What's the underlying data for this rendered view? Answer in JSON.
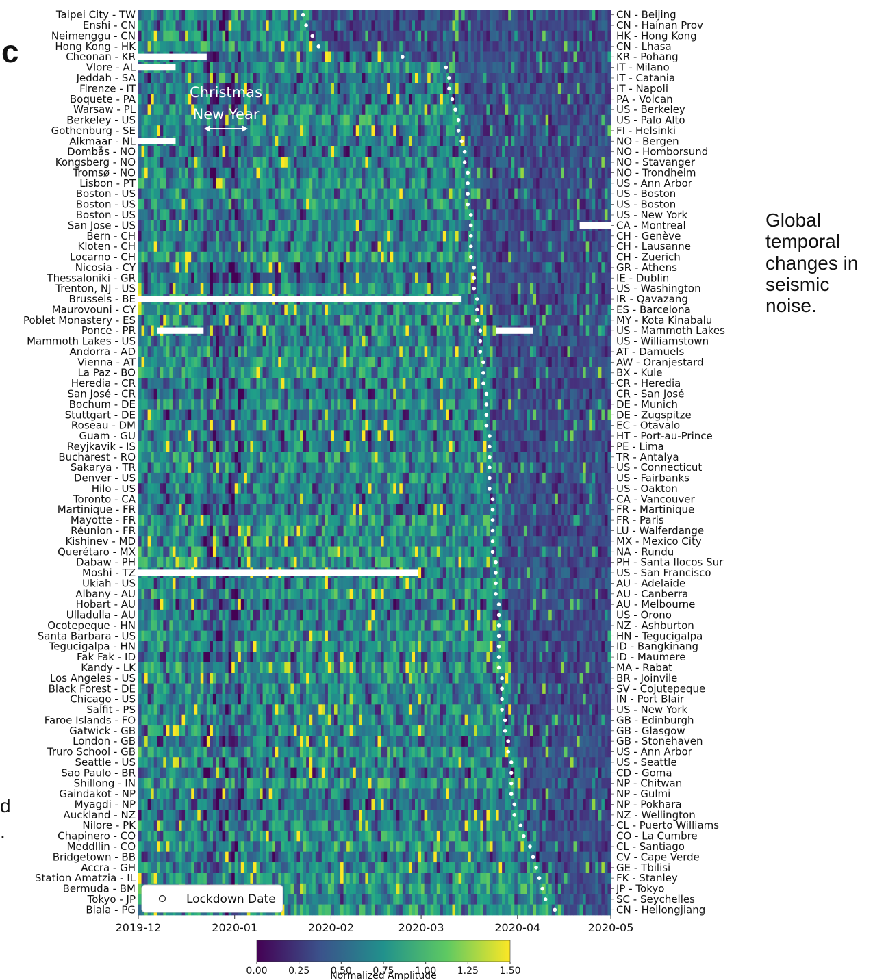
{
  "chart_data": {
    "type": "heatmap",
    "x_start": "2019-12",
    "x_end": "2020-05",
    "x_ticks": [
      "2019-12",
      "2020-01",
      "2020-02",
      "2020-03",
      "2020-04",
      "2020-05"
    ],
    "colorbar": {
      "label": "Normalized Amplitude",
      "ticks": [
        "0.00",
        "0.25",
        "0.50",
        "0.75",
        "1.00",
        "1.25",
        "1.50"
      ],
      "min": 0,
      "max": 1.5,
      "colormap": "viridis",
      "colors": [
        "#440154",
        "#3b528b",
        "#21918c",
        "#5ec962",
        "#fde725"
      ]
    },
    "left_labels": [
      "Taipei City - TW",
      "Enshi - CN",
      "Neimenggu - CN",
      "Hong Kong - HK",
      "Cheonan - KR",
      "Vlore - AL",
      "Jeddah - SA",
      "Firenze - IT",
      "Boquete - PA",
      "Warsaw - PL",
      "Berkeley - US",
      "Gothenburg - SE",
      "Alkmaar - NL",
      "Dombås - NO",
      "Kongsberg - NO",
      "Tromsø - NO",
      "Lisbon - PT",
      "Boston - US",
      "Boston - US",
      "Boston - US",
      "San Jose - US",
      "Bern - CH",
      "Kloten - CH",
      "Locarno - CH",
      "Nicosia - CY",
      "Thessaloniki - GR",
      "Trenton, NJ - US",
      "Brussels - BE",
      "Maurovouni - CY",
      "Poblet Monastery - ES",
      "Ponce - PR",
      "Mammoth Lakes - US",
      "Andorra - AD",
      "Vienna - AT",
      "La Paz - BO",
      "Heredia - CR",
      "San José - CR",
      "Bochum - DE",
      "Stuttgart - DE",
      "Roseau - DM",
      "Guam - GU",
      "Reyjkavik - IS",
      "Bucharest - RO",
      "Sakarya - TR",
      "Denver - US",
      "Hilo - US",
      "Toronto - CA",
      "Martinique - FR",
      "Mayotte - FR",
      "Réunion - FR",
      "Kishinev - MD",
      "Querétaro - MX",
      "Dabaw - PH",
      "Moshi - TZ",
      "Ukiah - US",
      "Albany - AU",
      "Hobart - AU",
      "Ulladulla - AU",
      "Ocotepeque - HN",
      "Santa Barbara - US",
      "Tegucigalpa - HN",
      "Fak Fak - ID",
      "Kandy - LK",
      "Los Angeles - US",
      "Black Forest - DE",
      "Chicago - US",
      "Salfit - PS",
      "Faroe Islands - FO",
      "Gatwick - GB",
      "London - GB",
      "Truro School - GB",
      "Seattle - US",
      "Sao Paulo - BR",
      "Shillong - IN",
      "Gaindakot - NP",
      "Myagdi - NP",
      "Auckland - NZ",
      "Nilore - PK",
      "Chapinero - CO",
      "Meddllin - CO",
      "Bridgetown - BB",
      "Accra - GH",
      "Station Amatzia - IL",
      "Bermuda - BM",
      "Tokyo - JP",
      "Biala - PG"
    ],
    "right_labels": [
      "CN - Beijing",
      "CN - Hainan Prov",
      "HK - Hong Kong",
      "CN - Lhasa",
      "KR - Pohang",
      "IT - Milano",
      "IT - Catania",
      "IT - Napoli",
      "PA - Volcan",
      "US - Berkeley",
      "US - Palo Alto",
      "FI - Helsinki",
      "NO - Bergen",
      "NO - Homborsund",
      "NO - Stavanger",
      "NO - Trondheim",
      "US - Ann Arbor",
      "US - Boston",
      "US - Boston",
      "US - New York",
      "CA - Montreal",
      "CH - Genève",
      "CH - Lausanne",
      "CH - Zuerich",
      "GR - Athens",
      "IE - Dublin",
      "US - Washington",
      "IR - Qavazang",
      "ES - Barcelona",
      "MY - Kota Kinabalu",
      "US - Mammoth Lakes",
      "US - Williamstown",
      "AT - Damuels",
      "AW - Oranjestard",
      "BX - Kule",
      "CR - Heredia",
      "CR - San José",
      "DE - Munich",
      "DE - Zugspitze",
      "EC - Otavalo",
      "HT - Port-au-Prince",
      "PE - Lima",
      "TR - Antalya",
      "US - Connecticut",
      "US - Fairbanks",
      "US - Oakton",
      "CA - Vancouver",
      "FR - Martinique",
      "FR - Paris",
      "LU - Walferdange",
      "MX - Mexico City",
      "NA - Rundu",
      "PH - Santa Ilocos Sur",
      "US - San Francisco",
      "AU - Adelaide",
      "AU - Canberra",
      "AU - Melbourne",
      "US - Orono",
      "NZ - Ashburton",
      "HN - Tegucigalpa",
      "ID - Bangkinang",
      "ID - Maumere",
      "MA - Rabat",
      "BR - Joinvile",
      "SV - Cojutepeque",
      "IN - Port Blair",
      "US - New York",
      "GB - Edinburgh",
      "GB - Glasgow",
      "GB - Stonehaven",
      "US - Ann Arbor",
      "US - Seattle",
      "CD - Goma",
      "NP - Chitwan",
      "NP - Gulmi",
      "NP - Pokhara",
      "NZ - Wellington",
      "CL - Puerto Williams",
      "CO - La Cumbre",
      "CL - Santiago",
      "CV - Cape Verde",
      "GE - Tbilisi",
      "FK - Stanley",
      "JP - Tokyo",
      "SC - Seychelles",
      "CN - Heilongjiang"
    ],
    "lockdown_dates": [
      "2020-01-23",
      "2020-01-24",
      "2020-01-26",
      "2020-01-28",
      "2020-02-24",
      "2020-03-09",
      "2020-03-10",
      "2020-03-10",
      "2020-03-11",
      "2020-03-12",
      "2020-03-13",
      "2020-03-13",
      "2020-03-14",
      "2020-03-15",
      "2020-03-15",
      "2020-03-16",
      "2020-03-16",
      "2020-03-16",
      "2020-03-16",
      "2020-03-17",
      "2020-03-17",
      "2020-03-17",
      "2020-03-17",
      "2020-03-17",
      "2020-03-18",
      "2020-03-18",
      "2020-03-18",
      "2020-03-19",
      "2020-03-19",
      "2020-03-19",
      "2020-03-20",
      "2020-03-20",
      "2020-03-20",
      "2020-03-21",
      "2020-03-21",
      "2020-03-21",
      "2020-03-22",
      "2020-03-22",
      "2020-03-22",
      "2020-03-22",
      "2020-03-23",
      "2020-03-23",
      "2020-03-23",
      "2020-03-23",
      "2020-03-23",
      "2020-03-23",
      "2020-03-24",
      "2020-03-24",
      "2020-03-24",
      "2020-03-24",
      "2020-03-24",
      "2020-03-24",
      "2020-03-25",
      "2020-03-25",
      "2020-03-25",
      "2020-03-25",
      "2020-03-26",
      "2020-03-26",
      "2020-03-26",
      "2020-03-26",
      "2020-03-26",
      "2020-03-26",
      "2020-03-26",
      "2020-03-27",
      "2020-03-27",
      "2020-03-27",
      "2020-03-27",
      "2020-03-28",
      "2020-03-28",
      "2020-03-29",
      "2020-03-29",
      "2020-03-30",
      "2020-03-30",
      "2020-03-30",
      "2020-03-30",
      "2020-03-31",
      "2020-03-31",
      "2020-04-02",
      "2020-04-03",
      "2020-04-05",
      "2020-04-06",
      "2020-04-07",
      "2020-04-08",
      "2020-04-09",
      "2020-04-10",
      "2020-04-13"
    ],
    "annotations": [
      "Christmas",
      "New Year"
    ],
    "legend": {
      "label": "Lockdown Date",
      "position": "bottom-left"
    }
  },
  "side_caption": "Global temporal changes in seismic noise.",
  "panel_letter": "c",
  "cut_text": [
    "d",
    "."
  ]
}
